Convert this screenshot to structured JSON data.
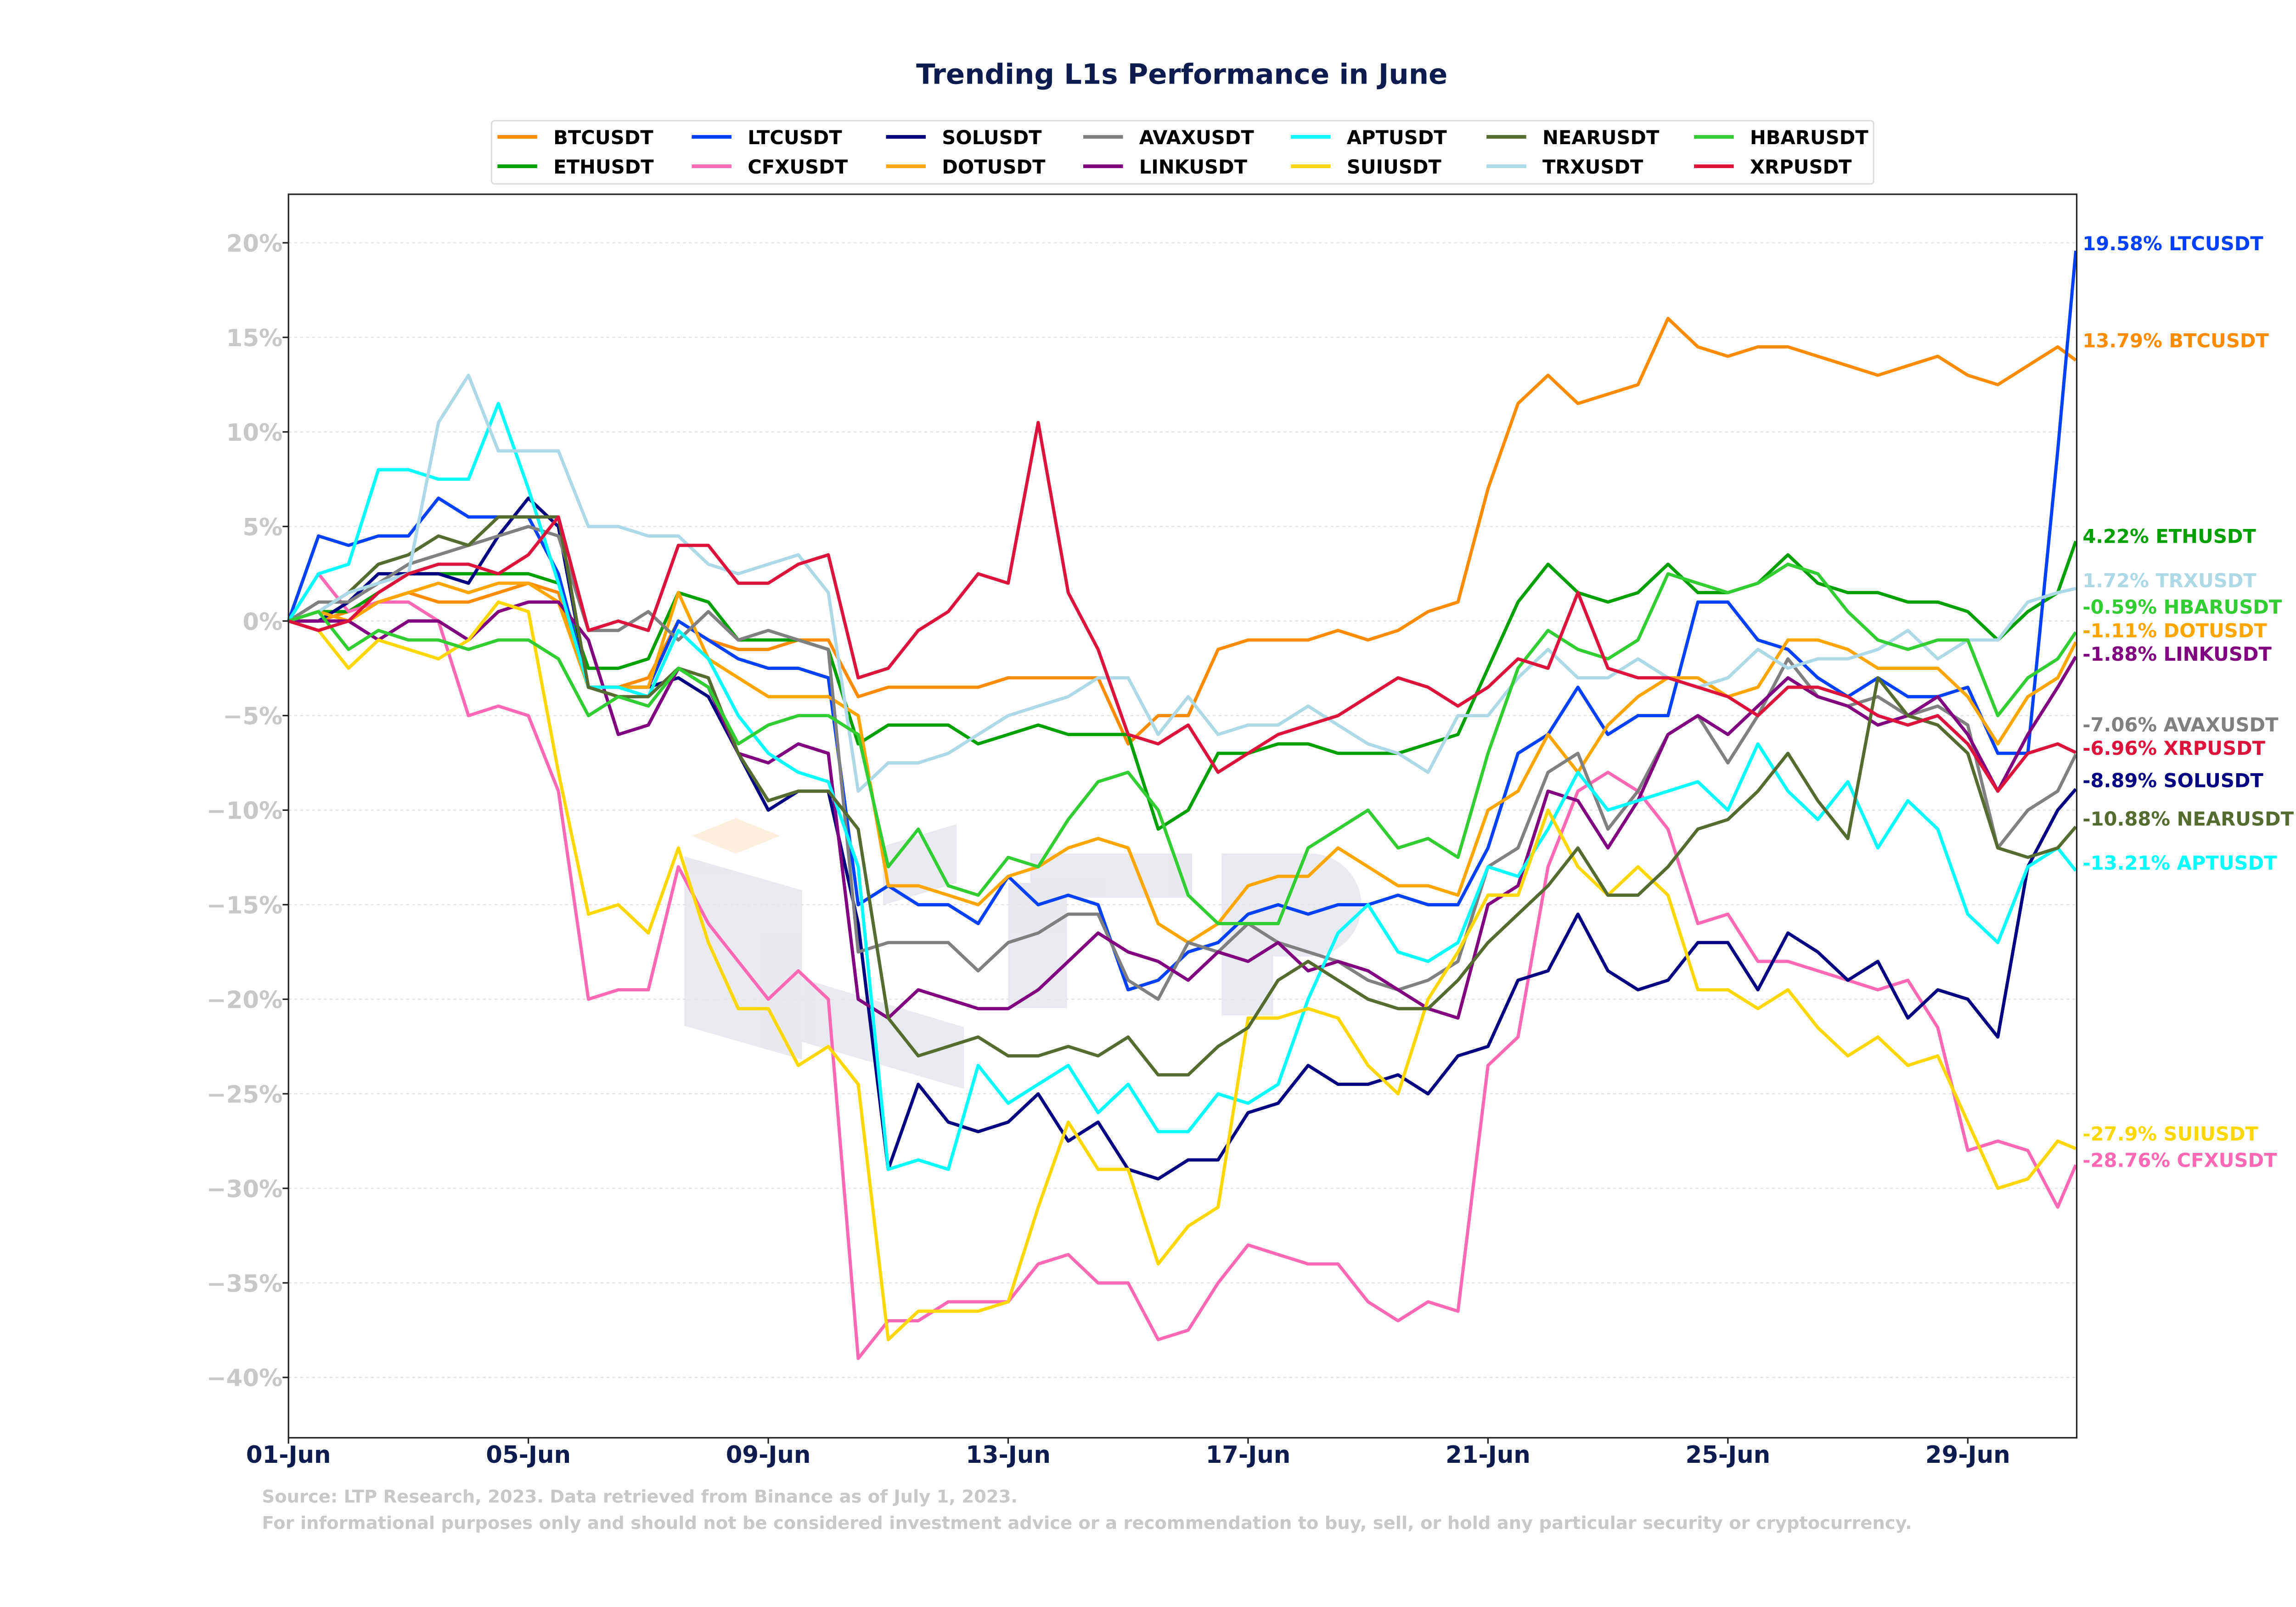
{
  "chart_data": {
    "type": "line",
    "title": "Trending L1s Performance in June",
    "xlabel": "",
    "ylabel": "",
    "x_unit": "days since 01-Jun",
    "x": [
      0,
      0.5,
      1,
      1.5,
      2,
      2.5,
      3,
      3.5,
      4,
      4.5,
      5,
      5.5,
      6,
      6.5,
      7,
      7.5,
      8,
      8.5,
      9,
      9.5,
      10,
      10.5,
      11,
      11.5,
      12,
      12.5,
      13,
      13.5,
      14,
      14.5,
      15,
      15.5,
      16,
      16.5,
      17,
      17.5,
      18,
      18.5,
      19,
      19.5,
      20,
      20.5,
      21,
      21.5,
      22,
      22.5,
      23,
      23.5,
      24,
      24.5,
      25,
      25.5,
      26,
      26.5,
      27,
      27.5,
      28,
      28.5,
      29,
      29.5,
      29.8
    ],
    "xlim": [
      0,
      29.8
    ],
    "ylim": [
      -43,
      23
    ],
    "xticks": [
      {
        "value": 0,
        "label": "01-Jun"
      },
      {
        "value": 4,
        "label": "05-Jun"
      },
      {
        "value": 8,
        "label": "09-Jun"
      },
      {
        "value": 12,
        "label": "13-Jun"
      },
      {
        "value": 16,
        "label": "17-Jun"
      },
      {
        "value": 20,
        "label": "21-Jun"
      },
      {
        "value": 24,
        "label": "25-Jun"
      },
      {
        "value": 28,
        "label": "29-Jun"
      }
    ],
    "yticks": [
      {
        "value": 20,
        "label": "20%"
      },
      {
        "value": 15,
        "label": "15%"
      },
      {
        "value": 10,
        "label": "10%"
      },
      {
        "value": 5,
        "label": "5%"
      },
      {
        "value": 0,
        "label": "0%"
      },
      {
        "value": -5,
        "label": "−5%"
      },
      {
        "value": -10,
        "label": "−10%"
      },
      {
        "value": -15,
        "label": "−15%"
      },
      {
        "value": -20,
        "label": "−20%"
      },
      {
        "value": -25,
        "label": "−25%"
      },
      {
        "value": -30,
        "label": "−30%"
      },
      {
        "value": -35,
        "label": "−35%"
      },
      {
        "value": -40,
        "label": "−40%"
      }
    ],
    "grid": true,
    "legend_placement": "top-center",
    "series": [
      {
        "name": "BTCUSDT",
        "color": "#ff8c00",
        "end_label": "13.79% BTCUSDT",
        "values": [
          0,
          0,
          0.5,
          1,
          1.5,
          1,
          1,
          1.5,
          2,
          1.5,
          -3.5,
          -3.5,
          -3,
          0,
          -1,
          -1.5,
          -1.5,
          -1,
          -1,
          -4,
          -3.5,
          -3.5,
          -3.5,
          -3.5,
          -3,
          -3,
          -3,
          -3,
          -6.5,
          -5,
          -5,
          -1.5,
          -1,
          -1,
          -1,
          -0.5,
          -1,
          -0.5,
          0.5,
          1,
          7,
          11.5,
          13,
          11.5,
          12,
          12.5,
          16,
          14.5,
          14,
          14.5,
          14.5,
          14,
          13.5,
          13,
          13.5,
          14,
          13,
          12.5,
          13.5,
          14.5,
          13.79
        ]
      },
      {
        "name": "ETHUSDT",
        "color": "#00a000",
        "end_label": "4.22% ETHUSDT",
        "values": [
          0,
          0.5,
          0.5,
          1.5,
          2.5,
          2.5,
          2.5,
          2.5,
          2.5,
          2,
          -2.5,
          -2.5,
          -2,
          1.5,
          1,
          -1,
          -1,
          -1,
          -1.5,
          -6.5,
          -5.5,
          -5.5,
          -5.5,
          -6.5,
          -6,
          -5.5,
          -6,
          -6,
          -6,
          -11,
          -10,
          -7,
          -7,
          -6.5,
          -6.5,
          -7,
          -7,
          -7,
          -6.5,
          -6,
          -2.5,
          1,
          3,
          1.5,
          1,
          1.5,
          3,
          1.5,
          1.5,
          2,
          3.5,
          2,
          1.5,
          1.5,
          1,
          1,
          0.5,
          -1,
          0.5,
          1.5,
          4.22
        ]
      },
      {
        "name": "LTCUSDT",
        "color": "#0040ff",
        "end_label": "19.58% LTCUSDT",
        "values": [
          0,
          4.5,
          4,
          4.5,
          4.5,
          6.5,
          5.5,
          5.5,
          5.5,
          2.5,
          -3.5,
          -3.5,
          -3.5,
          0,
          -1,
          -2,
          -2.5,
          -2.5,
          -3,
          -15,
          -14,
          -15,
          -15,
          -16,
          -13.5,
          -15,
          -14.5,
          -15,
          -19.5,
          -19,
          -17.5,
          -17,
          -15.5,
          -15,
          -15.5,
          -15,
          -15,
          -14.5,
          -15,
          -15,
          -12,
          -7,
          -6,
          -3.5,
          -6,
          -5,
          -5,
          1,
          1,
          -1,
          -1.5,
          -3,
          -4,
          -3,
          -4,
          -4,
          -3.5,
          -7,
          -7,
          9,
          19.58
        ]
      },
      {
        "name": "CFXUSDT",
        "color": "#ff69b4",
        "end_label": "-28.76% CFXUSDT",
        "values": [
          0,
          2.5,
          0.5,
          1,
          1,
          0,
          -5,
          -4.5,
          -5,
          -9,
          -20,
          -19.5,
          -19.5,
          -13,
          -16,
          -18,
          -20,
          -18.5,
          -20,
          -39,
          -37,
          -37,
          -36,
          -36,
          -36,
          -34,
          -33.5,
          -35,
          -35,
          -38,
          -37.5,
          -35,
          -33,
          -33.5,
          -34,
          -34,
          -36,
          -37,
          -36,
          -36.5,
          -23.5,
          -22,
          -13,
          -9,
          -8,
          -9,
          -11,
          -16,
          -15.5,
          -18,
          -18,
          -18.5,
          -19,
          -19.5,
          -19,
          -21.5,
          -28,
          -27.5,
          -28,
          -31,
          -28.76
        ]
      },
      {
        "name": "SOLUSDT",
        "color": "#000080",
        "end_label": "-8.89% SOLUSDT",
        "values": [
          0,
          0,
          1,
          2.5,
          2.5,
          2.5,
          2,
          4.5,
          6.5,
          5,
          -3.5,
          -3.5,
          -3.5,
          -3,
          -4,
          -7,
          -10,
          -9,
          -9,
          -16,
          -29,
          -24.5,
          -26.5,
          -27,
          -26.5,
          -25,
          -27.5,
          -26.5,
          -29,
          -29.5,
          -28.5,
          -28.5,
          -26,
          -25.5,
          -23.5,
          -24.5,
          -24.5,
          -24,
          -25,
          -23,
          -22.5,
          -19,
          -18.5,
          -15.5,
          -18.5,
          -19.5,
          -19,
          -17,
          -17,
          -19.5,
          -16.5,
          -17.5,
          -19,
          -18,
          -21,
          -19.5,
          -20,
          -22,
          -13,
          -10,
          -8.89
        ]
      },
      {
        "name": "DOTUSDT",
        "color": "#ffa500",
        "end_label": "-1.11% DOTUSDT",
        "values": [
          0,
          0.5,
          0,
          1,
          1.5,
          2,
          1.5,
          2,
          2,
          1,
          -3.5,
          -3.5,
          -3.5,
          1.5,
          -2,
          -3,
          -4,
          -4,
          -4,
          -5,
          -14,
          -14,
          -14.5,
          -15,
          -13.5,
          -13,
          -12,
          -11.5,
          -12,
          -16,
          -17,
          -16,
          -14,
          -13.5,
          -13.5,
          -12,
          -13,
          -14,
          -14,
          -14.5,
          -10,
          -9,
          -6,
          -8,
          -5.5,
          -4,
          -3,
          -3,
          -4,
          -3.5,
          -1,
          -1,
          -1.5,
          -2.5,
          -2.5,
          -2.5,
          -4,
          -6.5,
          -4,
          -3,
          -1.11
        ]
      },
      {
        "name": "AVAXUSDT",
        "color": "#808080",
        "end_label": "-7.06% AVAXUSDT",
        "values": [
          0,
          1,
          1,
          2,
          3,
          3.5,
          4,
          4.5,
          5,
          4.5,
          -0.5,
          -0.5,
          0.5,
          -1,
          0.5,
          -1,
          -0.5,
          -1,
          -1.5,
          -17.5,
          -17,
          -17,
          -17,
          -18.5,
          -17,
          -16.5,
          -15.5,
          -15.5,
          -19,
          -20,
          -17,
          -17.5,
          -16,
          -17,
          -17.5,
          -18,
          -19,
          -19.5,
          -19,
          -18,
          -13,
          -12,
          -8,
          -7,
          -11,
          -9,
          -6,
          -5,
          -7.5,
          -5,
          -2,
          -4,
          -4.5,
          -4,
          -5,
          -4.5,
          -5.5,
          -12,
          -10,
          -9,
          -7.06
        ]
      },
      {
        "name": "LINKUSDT",
        "color": "#800080",
        "end_label": "-1.88% LINKUSDT",
        "values": [
          0,
          0,
          0,
          -1,
          0,
          0,
          -1,
          0.5,
          1,
          1,
          -1,
          -6,
          -5.5,
          -2.5,
          -3.5,
          -7,
          -7.5,
          -6.5,
          -7,
          -20,
          -21,
          -19.5,
          -20,
          -20.5,
          -20.5,
          -19.5,
          -18,
          -16.5,
          -17.5,
          -18,
          -19,
          -17.5,
          -18,
          -17,
          -18.5,
          -18,
          -18.5,
          -19.5,
          -20.5,
          -21,
          -15,
          -14,
          -9,
          -9.5,
          -12,
          -9.5,
          -6,
          -5,
          -6,
          -4.5,
          -3,
          -4,
          -4.5,
          -5.5,
          -5,
          -4,
          -6,
          -9,
          -6,
          -3.5,
          -1.88
        ]
      },
      {
        "name": "APTUSDT",
        "color": "#00ffff",
        "end_label": "-13.21% APTUSDT",
        "values": [
          0,
          2.5,
          3,
          8,
          8,
          7.5,
          7.5,
          11.5,
          7,
          2,
          -3.5,
          -3.5,
          -4,
          -0.5,
          -2,
          -5,
          -7,
          -8,
          -8.5,
          -13,
          -29,
          -28.5,
          -29,
          -23.5,
          -25.5,
          -24.5,
          -23.5,
          -26,
          -24.5,
          -27,
          -27,
          -25,
          -25.5,
          -24.5,
          -20,
          -16.5,
          -15,
          -17.5,
          -18,
          -17,
          -13,
          -13.5,
          -11,
          -8,
          -10,
          -9.5,
          -9,
          -8.5,
          -10,
          -6.5,
          -9,
          -10.5,
          -8.5,
          -12,
          -9.5,
          -11,
          -15.5,
          -17,
          -13,
          -12,
          -13.21
        ]
      },
      {
        "name": "SUIUSDT",
        "color": "#ffd700",
        "end_label": "-27.9% SUIUSDT",
        "values": [
          0,
          -0.5,
          -2.5,
          -1,
          -1.5,
          -2,
          -1,
          1,
          0.5,
          -8,
          -15.5,
          -15,
          -16.5,
          -12,
          -17,
          -20.5,
          -20.5,
          -23.5,
          -22.5,
          -24.5,
          -38,
          -36.5,
          -36.5,
          -36.5,
          -36,
          -31,
          -26.5,
          -29,
          -29,
          -34,
          -32,
          -31,
          -21,
          -21,
          -20.5,
          -21,
          -23.5,
          -25,
          -20,
          -17.5,
          -14.5,
          -14.5,
          -10,
          -13,
          -14.5,
          -13,
          -14.5,
          -19.5,
          -19.5,
          -20.5,
          -19.5,
          -21.5,
          -23,
          -22,
          -23.5,
          -23,
          -26.5,
          -30,
          -29.5,
          -27.5,
          -27.9
        ]
      },
      {
        "name": "NEARUSDT",
        "color": "#556b2f",
        "end_label": "-10.88% NEARUSDT",
        "values": [
          0,
          0.5,
          1.5,
          3,
          3.5,
          4.5,
          4,
          5.5,
          5.5,
          5.5,
          -3.5,
          -4,
          -4,
          -2.5,
          -3,
          -7,
          -9.5,
          -9,
          -9,
          -11,
          -21,
          -23,
          -22.5,
          -22,
          -23,
          -23,
          -22.5,
          -23,
          -22,
          -24,
          -24,
          -22.5,
          -21.5,
          -19,
          -18,
          -19,
          -20,
          -20.5,
          -20.5,
          -19,
          -17,
          -15.5,
          -14,
          -12,
          -14.5,
          -14.5,
          -13,
          -11,
          -10.5,
          -9,
          -7,
          -9.5,
          -11.5,
          -3,
          -5,
          -5.5,
          -7,
          -12,
          -12.5,
          -12,
          -10.88
        ]
      },
      {
        "name": "TRXUSDT",
        "color": "#add8e6",
        "end_label": "1.72% TRXUSDT",
        "values": [
          0,
          0.5,
          1.5,
          2,
          2.5,
          10.5,
          13,
          9,
          9,
          9,
          5,
          5,
          4.5,
          4.5,
          3,
          2.5,
          3,
          3.5,
          1.5,
          -9,
          -7.5,
          -7.5,
          -7,
          -6,
          -5,
          -4.5,
          -4,
          -3,
          -3,
          -6,
          -4,
          -6,
          -5.5,
          -5.5,
          -4.5,
          -5.5,
          -6.5,
          -7,
          -8,
          -5,
          -5,
          -3,
          -1.5,
          -3,
          -3,
          -2,
          -3,
          -3.5,
          -3,
          -1.5,
          -2.5,
          -2,
          -2,
          -1.5,
          -0.5,
          -2,
          -1,
          -1,
          1,
          1.5,
          1.72
        ]
      },
      {
        "name": "HBARUSDT",
        "color": "#32cd32",
        "end_label": "-0.59% HBARUSDT",
        "values": [
          0,
          0.5,
          -1.5,
          -0.5,
          -1,
          -1,
          -1.5,
          -1,
          -1,
          -2,
          -5,
          -4,
          -4.5,
          -2.5,
          -3.5,
          -6.5,
          -5.5,
          -5,
          -5,
          -6,
          -13,
          -11,
          -14,
          -14.5,
          -12.5,
          -13,
          -10.5,
          -8.5,
          -8,
          -10,
          -14.5,
          -16,
          -16,
          -16,
          -12,
          -11,
          -10,
          -12,
          -11.5,
          -12.5,
          -7,
          -2.5,
          -0.5,
          -1.5,
          -2,
          -1,
          2.5,
          2,
          1.5,
          2,
          3,
          2.5,
          0.5,
          -1,
          -1.5,
          -1,
          -1,
          -5,
          -3,
          -2,
          -0.59
        ]
      },
      {
        "name": "XRPUSDT",
        "color": "#dc143c",
        "end_label": "-6.96% XRPUSDT",
        "values": [
          0,
          -0.5,
          0,
          1.5,
          2.5,
          3,
          3,
          2.5,
          3.5,
          5.5,
          -0.5,
          0,
          -0.5,
          4,
          4,
          2,
          2,
          3,
          3.5,
          -3,
          -2.5,
          -0.5,
          0.5,
          2.5,
          2,
          10.5,
          1.5,
          -1.5,
          -6,
          -6.5,
          -5.5,
          -8,
          -7,
          -6,
          -5.5,
          -5,
          -4,
          -3,
          -3.5,
          -4.5,
          -3.5,
          -2,
          -2.5,
          1.5,
          -2.5,
          -3,
          -3,
          -3.5,
          -4,
          -5,
          -3.5,
          -3.5,
          -4,
          -5,
          -5.5,
          -5,
          -6.5,
          -9,
          -7,
          -6.5,
          -6.96
        ]
      }
    ],
    "legend_order": [
      "BTCUSDT",
      "LTCUSDT",
      "SOLUSDT",
      "AVAXUSDT",
      "APTUSDT",
      "NEARUSDT",
      "HBARUSDT",
      "ETHUSDT",
      "CFXUSDT",
      "DOTUSDT",
      "LINKUSDT",
      "SUIUSDT",
      "TRXUSDT",
      "XRPUSDT"
    ]
  },
  "footer": {
    "source": "Source: LTP Research, 2023. Data retrieved from Binance as of July 1, 2023.",
    "disclaimer": "For informational purposes only and should not be considered investment advice or a recommendation to buy, sell, or hold any particular security or cryptocurrency."
  },
  "watermark": {
    "text": "LTP"
  }
}
